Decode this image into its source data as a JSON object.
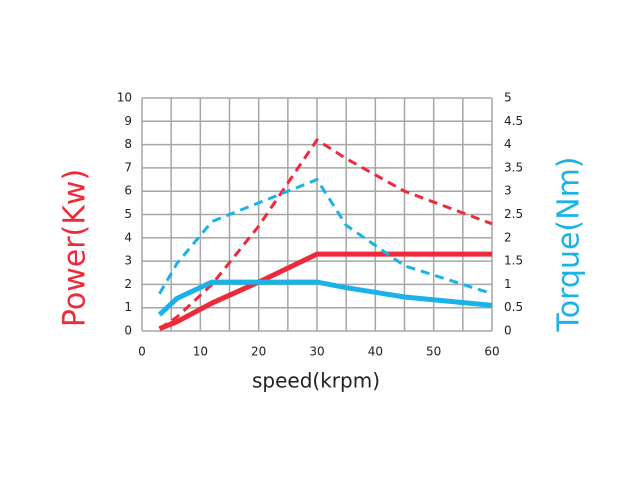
{
  "chart_data": {
    "type": "line",
    "x_label": "speed(krpm)",
    "y_label": "Power(Kw)",
    "y2_label": "Torque(Nm)",
    "y_label_color": "#ee2a3a",
    "y2_label_color": "#1ab3e8",
    "xlim": [
      0,
      60
    ],
    "xticks": [
      0,
      10,
      20,
      30,
      40,
      50,
      60
    ],
    "xminor": [
      5,
      15,
      25,
      35,
      45,
      55
    ],
    "ylim": [
      0,
      10
    ],
    "yticks": [
      0,
      1,
      2,
      3,
      4,
      5,
      6,
      7,
      8,
      9,
      10
    ],
    "y2lim": [
      0,
      5
    ],
    "y2ticks": [
      0,
      0.5,
      1,
      1.5,
      2,
      2.5,
      3,
      3.5,
      4,
      4.5,
      5
    ],
    "grid": true,
    "series": [
      {
        "color": "#ee2a3a",
        "dash": false,
        "axis": "y",
        "x": [
          3,
          6,
          12,
          20,
          30,
          40,
          50,
          60
        ],
        "values": [
          0.1,
          0.4,
          1.2,
          2.1,
          3.3,
          3.3,
          3.3,
          3.3
        ]
      },
      {
        "color": "#ee2a3a",
        "dash": true,
        "axis": "y",
        "x": [
          3,
          6,
          12,
          20,
          30,
          35,
          45,
          60
        ],
        "values": [
          0.1,
          0.6,
          2,
          4.5,
          8.2,
          7.4,
          6,
          4.6
        ]
      },
      {
        "color": "#1ab3e8",
        "dash": false,
        "axis": "y2",
        "x": [
          3,
          6,
          12,
          20,
          30,
          35,
          45,
          60
        ],
        "values": [
          0.35,
          0.7,
          1.05,
          1.05,
          1.05,
          0.93,
          0.73,
          0.55
        ]
      },
      {
        "color": "#1ab3e8",
        "dash": true,
        "axis": "y2",
        "x": [
          3,
          6,
          12,
          20,
          30,
          35,
          45,
          60
        ],
        "values": [
          0.8,
          1.45,
          2.35,
          2.75,
          3.25,
          2.27,
          1.4,
          0.8
        ]
      }
    ]
  }
}
